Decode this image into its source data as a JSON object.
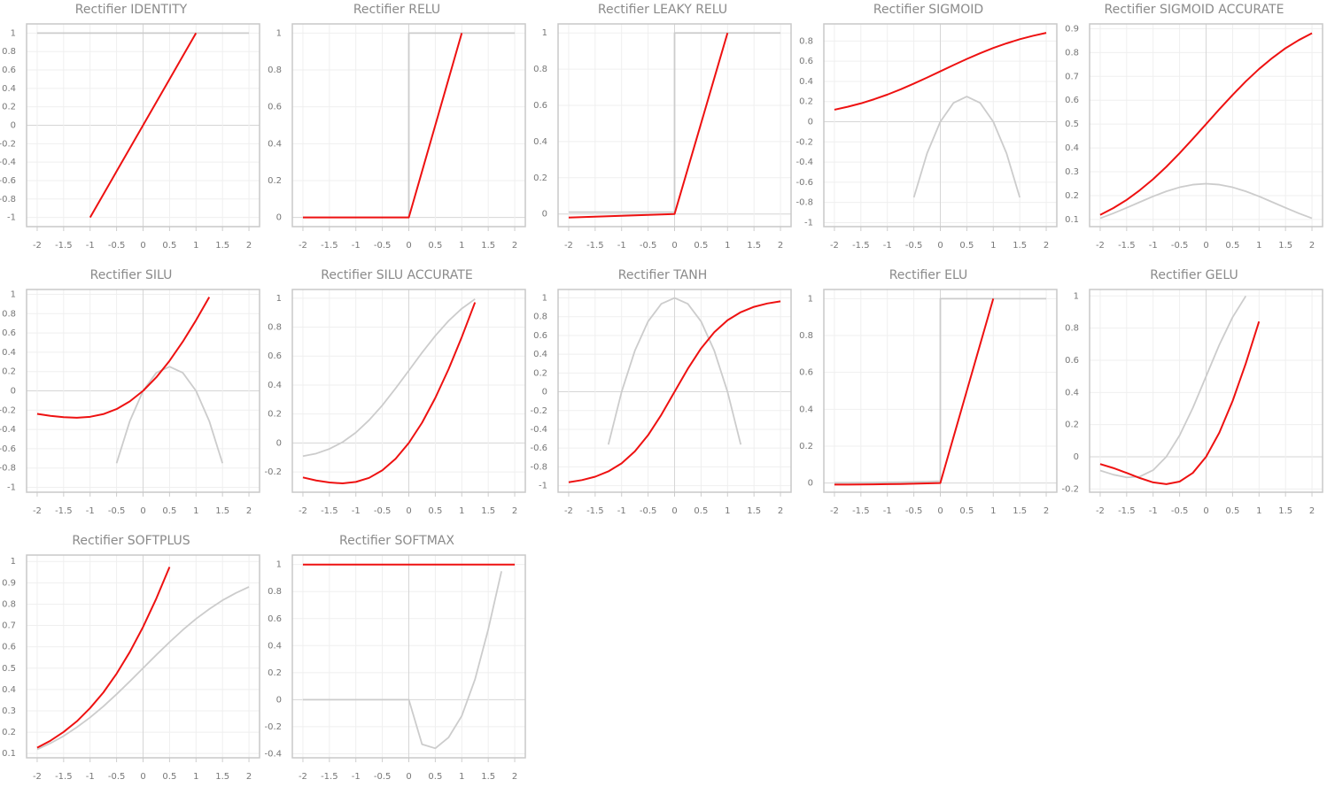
{
  "chart_data": [
    {
      "type": "line",
      "title": "Rectifier IDENTITY",
      "x": [
        -2,
        -1.75,
        -1.5,
        -1.25,
        -1,
        -0.75,
        -0.5,
        -0.25,
        0,
        0.25,
        0.5,
        0.75,
        1,
        1.25,
        1.5,
        1.75,
        2
      ],
      "series": [
        {
          "color": "#cccccc",
          "values": [
            1,
            1,
            1,
            1,
            1,
            1,
            1,
            1,
            1,
            1,
            1,
            1,
            1,
            1,
            1,
            1,
            1
          ]
        },
        {
          "color": "#ee1111",
          "values": [
            null,
            null,
            null,
            null,
            -1,
            -0.75,
            -0.5,
            -0.25,
            0,
            0.25,
            0.5,
            0.75,
            1,
            null,
            null,
            null,
            null
          ]
        }
      ],
      "xlim": [
        -2.2,
        2.2
      ],
      "xticks": [
        -2,
        -1.5,
        -1,
        -0.5,
        0,
        0.5,
        1,
        1.5,
        2
      ],
      "ylim": [
        -1.1,
        1.1
      ],
      "yticks": [
        -1,
        -0.8,
        -0.6,
        -0.4,
        -0.2,
        0,
        0.2,
        0.4,
        0.6,
        0.8,
        1
      ],
      "grid": true
    },
    {
      "type": "line",
      "title": "Rectifier RELU",
      "x": [
        -2,
        -1.75,
        -1.5,
        -1.25,
        -1,
        -0.75,
        -0.5,
        -0.25,
        0,
        0,
        0.25,
        0.5,
        0.75,
        1,
        1.25,
        1.5,
        1.75,
        2
      ],
      "series": [
        {
          "color": "#cccccc",
          "values": [
            0,
            0,
            0,
            0,
            0,
            0,
            0,
            0,
            0,
            1,
            1,
            1,
            1,
            1,
            1,
            1,
            1,
            1
          ]
        },
        {
          "color": "#ee1111",
          "values": [
            0,
            0,
            0,
            0,
            0,
            0,
            0,
            0,
            0,
            0,
            0.25,
            0.5,
            0.75,
            1,
            null,
            null,
            null,
            null
          ]
        }
      ],
      "xlim": [
        -2.2,
        2.2
      ],
      "xticks": [
        -2,
        -1.5,
        -1,
        -0.5,
        0,
        0.5,
        1,
        1.5,
        2
      ],
      "ylim": [
        -0.05,
        1.05
      ],
      "yticks": [
        0,
        0.2,
        0.4,
        0.6,
        0.8,
        1
      ],
      "grid": true
    },
    {
      "type": "line",
      "title": "Rectifier LEAKY RELU",
      "x": [
        -2,
        -1.75,
        -1.5,
        -1.25,
        -1,
        -0.75,
        -0.5,
        -0.25,
        0,
        0,
        0.25,
        0.5,
        0.75,
        1,
        1.25,
        1.5,
        1.75,
        2
      ],
      "series": [
        {
          "color": "#cccccc",
          "values": [
            0.01,
            0.01,
            0.01,
            0.01,
            0.01,
            0.01,
            0.01,
            0.01,
            0.01,
            1,
            1,
            1,
            1,
            1,
            1,
            1,
            1,
            1
          ]
        },
        {
          "color": "#ee1111",
          "values": [
            -0.02,
            -0.0175,
            -0.015,
            -0.0125,
            -0.01,
            -0.0075,
            -0.005,
            -0.0025,
            0,
            0,
            0.25,
            0.5,
            0.75,
            1,
            null,
            null,
            null,
            null
          ]
        }
      ],
      "xlim": [
        -2.2,
        2.2
      ],
      "xticks": [
        -2,
        -1.5,
        -1,
        -0.5,
        0,
        0.5,
        1,
        1.5,
        2
      ],
      "ylim": [
        -0.07,
        1.05
      ],
      "yticks": [
        0,
        0.2,
        0.4,
        0.6,
        0.8,
        1
      ],
      "grid": true
    },
    {
      "type": "line",
      "title": "Rectifier SIGMOID",
      "x": [
        -2,
        -1.75,
        -1.5,
        -1.25,
        -1,
        -0.75,
        -0.5,
        -0.25,
        0,
        0.25,
        0.5,
        0.75,
        1,
        1.25,
        1.5,
        1.75,
        2
      ],
      "series": [
        {
          "color": "#cccccc",
          "values": [
            null,
            null,
            null,
            null,
            null,
            null,
            -0.75,
            -0.3125,
            0,
            0.1875,
            0.25,
            0.1875,
            0,
            -0.3125,
            -0.75,
            null,
            null
          ]
        },
        {
          "color": "#ee1111",
          "values": [
            0.119,
            0.148,
            0.182,
            0.223,
            0.269,
            0.321,
            0.378,
            0.438,
            0.5,
            0.562,
            0.622,
            0.679,
            0.731,
            0.777,
            0.818,
            0.852,
            0.881
          ]
        }
      ],
      "xlim": [
        -2.2,
        2.2
      ],
      "xticks": [
        -2,
        -1.5,
        -1,
        -0.5,
        0,
        0.5,
        1,
        1.5,
        2
      ],
      "ylim": [
        -1.04,
        0.97
      ],
      "yticks": [
        -1,
        -0.8,
        -0.6,
        -0.4,
        -0.2,
        0,
        0.2,
        0.4,
        0.6,
        0.8
      ],
      "grid": true
    },
    {
      "type": "line",
      "title": "Rectifier SIGMOID ACCURATE",
      "x": [
        -2,
        -1.75,
        -1.5,
        -1.25,
        -1,
        -0.75,
        -0.5,
        -0.25,
        0,
        0.25,
        0.5,
        0.75,
        1,
        1.25,
        1.5,
        1.75,
        2
      ],
      "series": [
        {
          "color": "#cccccc",
          "values": [
            0.105,
            0.126,
            0.149,
            0.173,
            0.197,
            0.218,
            0.235,
            0.246,
            0.25,
            0.246,
            0.235,
            0.218,
            0.197,
            0.173,
            0.149,
            0.126,
            0.105
          ]
        },
        {
          "color": "#ee1111",
          "values": [
            0.119,
            0.148,
            0.182,
            0.223,
            0.269,
            0.321,
            0.378,
            0.438,
            0.5,
            0.562,
            0.622,
            0.679,
            0.731,
            0.777,
            0.818,
            0.852,
            0.881
          ]
        }
      ],
      "xlim": [
        -2.2,
        2.2
      ],
      "xticks": [
        -2,
        -1.5,
        -1,
        -0.5,
        0,
        0.5,
        1,
        1.5,
        2
      ],
      "ylim": [
        0.07,
        0.92
      ],
      "yticks": [
        0.1,
        0.2,
        0.3,
        0.4,
        0.5,
        0.6,
        0.7,
        0.8,
        0.9
      ],
      "grid": true
    },
    {
      "type": "line",
      "title": "Rectifier SILU",
      "x": [
        -2,
        -1.75,
        -1.5,
        -1.25,
        -1,
        -0.75,
        -0.5,
        -0.25,
        0,
        0.25,
        0.5,
        0.75,
        1,
        1.25,
        1.5,
        1.75,
        2
      ],
      "series": [
        {
          "color": "#cccccc",
          "values": [
            null,
            null,
            null,
            null,
            null,
            null,
            -0.75,
            -0.3125,
            0,
            0.1875,
            0.25,
            0.1875,
            0,
            -0.3125,
            -0.75,
            null,
            null
          ]
        },
        {
          "color": "#ee1111",
          "values": [
            -0.238,
            -0.259,
            -0.273,
            -0.279,
            -0.269,
            -0.241,
            -0.189,
            -0.109,
            0,
            0.14,
            0.311,
            0.509,
            0.731,
            0.971,
            null,
            null,
            null
          ]
        }
      ],
      "xlim": [
        -2.2,
        2.2
      ],
      "xticks": [
        -2,
        -1.5,
        -1,
        -0.5,
        0,
        0.5,
        1,
        1.5,
        2
      ],
      "ylim": [
        -1.05,
        1.05
      ],
      "yticks": [
        -1,
        -0.8,
        -0.6,
        -0.4,
        -0.2,
        0,
        0.2,
        0.4,
        0.6,
        0.8,
        1
      ],
      "grid": true
    },
    {
      "type": "line",
      "title": "Rectifier SILU ACCURATE",
      "x": [
        -2,
        -1.75,
        -1.5,
        -1.25,
        -1,
        -0.75,
        -0.5,
        -0.25,
        0,
        0.25,
        0.5,
        0.75,
        1,
        1.25,
        1.5,
        1.75,
        2
      ],
      "series": [
        {
          "color": "#cccccc",
          "values": [
            -0.091,
            -0.073,
            -0.041,
            0.006,
            0.072,
            0.158,
            0.26,
            0.377,
            0.5,
            0.624,
            0.74,
            0.843,
            0.928,
            0.994,
            null,
            null,
            null
          ]
        },
        {
          "color": "#ee1111",
          "values": [
            -0.238,
            -0.259,
            -0.273,
            -0.279,
            -0.269,
            -0.241,
            -0.189,
            -0.109,
            0,
            0.14,
            0.311,
            0.509,
            0.731,
            0.971,
            null,
            null,
            null
          ]
        }
      ],
      "xlim": [
        -2.2,
        2.2
      ],
      "xticks": [
        -2,
        -1.5,
        -1,
        -0.5,
        0,
        0.5,
        1,
        1.5,
        2
      ],
      "ylim": [
        -0.34,
        1.06
      ],
      "yticks": [
        -0.2,
        0,
        0.2,
        0.4,
        0.6,
        0.8,
        1
      ],
      "grid": true
    },
    {
      "type": "line",
      "title": "Rectifier TANH",
      "x": [
        -2,
        -1.75,
        -1.5,
        -1.25,
        -1,
        -0.75,
        -0.5,
        -0.25,
        0,
        0.25,
        0.5,
        0.75,
        1,
        1.25,
        1.5,
        1.75,
        2
      ],
      "series": [
        {
          "color": "#cccccc",
          "values": [
            null,
            null,
            null,
            -0.5625,
            0,
            0.4375,
            0.75,
            0.9375,
            1,
            0.9375,
            0.75,
            0.4375,
            0,
            -0.5625,
            null,
            null,
            null
          ]
        },
        {
          "color": "#ee1111",
          "values": [
            -0.964,
            -0.941,
            -0.905,
            -0.848,
            -0.762,
            -0.635,
            -0.462,
            -0.245,
            0,
            0.245,
            0.462,
            0.635,
            0.762,
            0.848,
            0.905,
            0.941,
            0.964
          ]
        }
      ],
      "xlim": [
        -2.2,
        2.2
      ],
      "xticks": [
        -2,
        -1.5,
        -1,
        -0.5,
        0,
        0.5,
        1,
        1.5,
        2
      ],
      "ylim": [
        -1.07,
        1.09
      ],
      "yticks": [
        -1,
        -0.8,
        -0.6,
        -0.4,
        -0.2,
        0,
        0.2,
        0.4,
        0.6,
        0.8,
        1
      ],
      "grid": true
    },
    {
      "type": "line",
      "title": "Rectifier ELU",
      "x": [
        -2,
        -1.75,
        -1.5,
        -1.25,
        -1,
        -0.75,
        -0.5,
        -0.25,
        0,
        0,
        0.25,
        0.5,
        0.75,
        1,
        1.25,
        1.5,
        1.75,
        2
      ],
      "series": [
        {
          "color": "#cccccc",
          "values": [
            0.0014,
            0.0017,
            0.0022,
            0.0029,
            0.0037,
            0.0047,
            0.0061,
            0.0078,
            0.01,
            1,
            1,
            1,
            1,
            1,
            1,
            1,
            1,
            1
          ]
        },
        {
          "color": "#ee1111",
          "values": [
            -0.0086,
            -0.0083,
            -0.0078,
            -0.0071,
            -0.0063,
            -0.0053,
            -0.0039,
            -0.0022,
            0,
            0,
            0.25,
            0.5,
            0.75,
            1,
            null,
            null,
            null,
            null
          ]
        }
      ],
      "xlim": [
        -2.2,
        2.2
      ],
      "xticks": [
        -2,
        -1.5,
        -1,
        -0.5,
        0,
        0.5,
        1,
        1.5,
        2
      ],
      "ylim": [
        -0.05,
        1.05
      ],
      "yticks": [
        0,
        0.2,
        0.4,
        0.6,
        0.8,
        1
      ],
      "grid": true
    },
    {
      "type": "line",
      "title": "Rectifier GELU",
      "x": [
        -2,
        -1.75,
        -1.5,
        -1.25,
        -1,
        -0.75,
        -0.5,
        -0.25,
        0,
        0.25,
        0.5,
        0.75,
        1,
        1.25,
        1.5,
        1.75,
        2
      ],
      "series": [
        {
          "color": "#cccccc",
          "values": [
            -0.085,
            -0.111,
            -0.128,
            -0.123,
            -0.083,
            0.001,
            0.133,
            0.304,
            0.5,
            0.696,
            0.867,
            0.999,
            null,
            null,
            null,
            null,
            null
          ]
        },
        {
          "color": "#ee1111",
          "values": [
            -0.045,
            -0.07,
            -0.1,
            -0.132,
            -0.159,
            -0.17,
            -0.154,
            -0.1,
            0,
            0.15,
            0.346,
            0.58,
            0.841,
            null,
            null,
            null,
            null
          ]
        }
      ],
      "xlim": [
        -2.2,
        2.2
      ],
      "xticks": [
        -2,
        -1.5,
        -1,
        -0.5,
        0,
        0.5,
        1,
        1.5,
        2
      ],
      "ylim": [
        -0.22,
        1.04
      ],
      "yticks": [
        -0.2,
        0,
        0.2,
        0.4,
        0.6,
        0.8,
        1
      ],
      "grid": true
    },
    {
      "type": "line",
      "title": "Rectifier SOFTPLUS",
      "x": [
        -2,
        -1.75,
        -1.5,
        -1.25,
        -1,
        -0.75,
        -0.5,
        -0.25,
        0,
        0.25,
        0.5,
        0.75,
        1,
        1.25,
        1.5,
        1.75,
        2
      ],
      "series": [
        {
          "color": "#cccccc",
          "values": [
            0.119,
            0.148,
            0.182,
            0.223,
            0.269,
            0.321,
            0.378,
            0.438,
            0.5,
            0.562,
            0.622,
            0.679,
            0.731,
            0.777,
            0.818,
            0.852,
            0.881
          ]
        },
        {
          "color": "#ee1111",
          "values": [
            0.127,
            0.16,
            0.201,
            0.251,
            0.313,
            0.386,
            0.474,
            0.576,
            0.693,
            0.826,
            0.974,
            null,
            null,
            null,
            null,
            null,
            null
          ]
        }
      ],
      "xlim": [
        -2.2,
        2.2
      ],
      "xticks": [
        -2,
        -1.5,
        -1,
        -0.5,
        0,
        0.5,
        1,
        1.5,
        2
      ],
      "ylim": [
        0.08,
        1.03
      ],
      "yticks": [
        0.1,
        0.2,
        0.3,
        0.4,
        0.5,
        0.6,
        0.7,
        0.8,
        0.9,
        1
      ],
      "grid": true
    },
    {
      "type": "line",
      "title": "Rectifier SOFTMAX",
      "x": [
        -2,
        -1.75,
        -1.5,
        -1.25,
        -1,
        -0.75,
        -0.5,
        -0.25,
        0,
        0.25,
        0.5,
        0.75,
        1,
        1.25,
        1.5,
        1.75,
        2
      ],
      "series": [
        {
          "color": "#cccccc",
          "values": [
            0,
            0,
            0,
            0,
            0,
            0,
            0,
            0,
            0,
            -0.33,
            -0.36,
            -0.28,
            -0.12,
            0.15,
            0.52,
            0.95,
            null
          ]
        },
        {
          "color": "#ee1111",
          "values": [
            1,
            1,
            1,
            1,
            1,
            1,
            1,
            1,
            1,
            1,
            1,
            1,
            1,
            1,
            1,
            1,
            1
          ]
        }
      ],
      "xlim": [
        -2.2,
        2.2
      ],
      "xticks": [
        -2,
        -1.5,
        -1,
        -0.5,
        0,
        0.5,
        1,
        1.5,
        2
      ],
      "ylim": [
        -0.43,
        1.07
      ],
      "yticks": [
        -0.4,
        -0.2,
        0,
        0.2,
        0.4,
        0.6,
        0.8,
        1
      ],
      "grid": true
    }
  ]
}
